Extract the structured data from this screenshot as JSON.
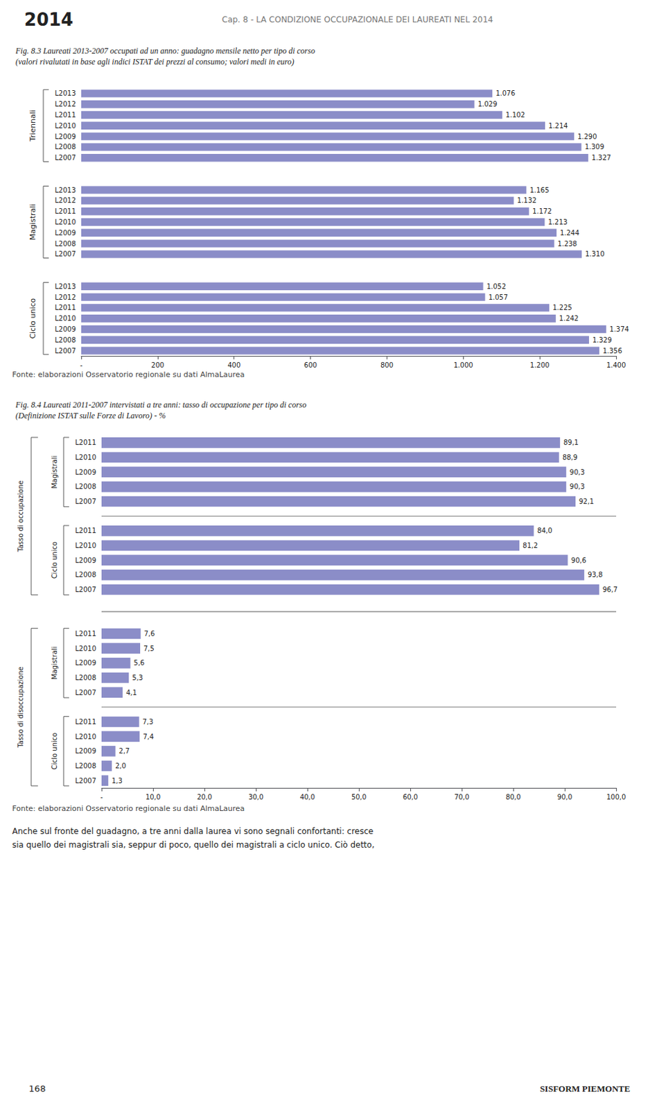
{
  "chart_data": [
    {
      "type": "bar",
      "orientation": "horizontal",
      "title": "Fig. 8.3 Laureati 2013-2007 occupati ad un anno: guadagno mensile netto per tipo di corso",
      "subtitle": "(valori rivalutati in base agli indici ISTAT dei prezzi al consumo; valori medi in euro)",
      "color": "#8b8dc8",
      "groups": [
        {
          "label": "Triennali",
          "categories": [
            "L2013",
            "L2012",
            "L2011",
            "L2010",
            "L2009",
            "L2008",
            "L2007"
          ],
          "values": [
            1076,
            1029,
            1102,
            1214,
            1290,
            1309,
            1327
          ],
          "value_labels": [
            "1.076",
            "1.029",
            "1.102",
            "1.214",
            "1.290",
            "1.309",
            "1.327"
          ]
        },
        {
          "label": "Magistrali",
          "categories": [
            "L2013",
            "L2012",
            "L2011",
            "L2010",
            "L2009",
            "L2008",
            "L2007"
          ],
          "values": [
            1165,
            1132,
            1172,
            1213,
            1244,
            1238,
            1310
          ],
          "value_labels": [
            "1.165",
            "1.132",
            "1.172",
            "1.213",
            "1.244",
            "1.238",
            "1.310"
          ]
        },
        {
          "label": "Ciclo unico",
          "categories": [
            "L2013",
            "L2012",
            "L2011",
            "L2010",
            "L2009",
            "L2008",
            "L2007"
          ],
          "values": [
            1052,
            1057,
            1225,
            1242,
            1374,
            1329,
            1356
          ],
          "value_labels": [
            "1.052",
            "1.057",
            "1.225",
            "1.242",
            "1.374",
            "1.329",
            "1.356"
          ]
        }
      ],
      "xlim": [
        0,
        1400
      ],
      "xticks": [
        {
          "value": 0,
          "label": "-"
        },
        200,
        400,
        600,
        800,
        {
          "value": 1000,
          "label": "1.000"
        },
        {
          "value": 1200,
          "label": "1.200"
        },
        {
          "value": 1400,
          "label": "1.400"
        }
      ],
      "grid": false,
      "data_labels": true,
      "annotations": [
        "2014",
        "Cap. 8 - LA CONDIZIONE OCCUPAZIONALE DEI LAUREATI NEL 2014",
        "Fonte: elaborazioni Osservatorio regionale su dati AlmaLaurea"
      ]
    },
    {
      "type": "bar",
      "orientation": "horizontal",
      "title": "Fig. 8.4 Laureati 2011-2007 intervistati a tre anni: tasso di occupazione per tipo di corso",
      "subtitle": "(Definizione ISTAT sulle Forze di Lavoro) - %",
      "color": "#8b8dc8",
      "sections": [
        {
          "label": "Tasso di occupazione",
          "groups": [
            {
              "label": "Magistrali",
              "categories": [
                "L2011",
                "L2010",
                "L2009",
                "L2008",
                "L2007"
              ],
              "values": [
                89.1,
                88.9,
                90.3,
                90.3,
                92.1
              ],
              "value_labels": [
                "89,1",
                "88,9",
                "90,3",
                "90,3",
                "92,1"
              ]
            },
            {
              "label": "Ciclo unico",
              "categories": [
                "L2011",
                "L2010",
                "L2009",
                "L2008",
                "L2007"
              ],
              "values": [
                84.0,
                81.2,
                90.6,
                93.8,
                96.7
              ],
              "value_labels": [
                "84,0",
                "81,2",
                "90,6",
                "93,8",
                "96,7"
              ]
            }
          ]
        },
        {
          "label": "Tasso di disoccupazione",
          "groups": [
            {
              "label": "Magistrali",
              "categories": [
                "L2011",
                "L2010",
                "L2009",
                "L2008",
                "L2007"
              ],
              "values": [
                7.6,
                7.5,
                5.6,
                5.3,
                4.1
              ],
              "value_labels": [
                "7,6",
                "7,5",
                "5,6",
                "5,3",
                "4,1"
              ]
            },
            {
              "label": "Ciclo unico",
              "categories": [
                "L2011",
                "L2010",
                "L2009",
                "L2008",
                "L2007"
              ],
              "values": [
                7.3,
                7.4,
                2.7,
                2.0,
                1.3
              ],
              "value_labels": [
                "7,3",
                "7,4",
                "2,7",
                "2,0",
                "1,3"
              ]
            }
          ]
        }
      ],
      "xlim": [
        0,
        100
      ],
      "xticks": [
        {
          "value": 0,
          "label": "-"
        },
        {
          "value": 10,
          "label": "10,0"
        },
        {
          "value": 20,
          "label": "20,0"
        },
        {
          "value": 30,
          "label": "30,0"
        },
        {
          "value": 40,
          "label": "40,0"
        },
        {
          "value": 50,
          "label": "50,0"
        },
        {
          "value": 60,
          "label": "60,0"
        },
        {
          "value": 70,
          "label": "70,0"
        },
        {
          "value": 80,
          "label": "80,0"
        },
        {
          "value": 90,
          "label": "90,0"
        },
        {
          "value": 100,
          "label": "100,0"
        }
      ],
      "grid": false,
      "data_labels": true,
      "annotations": [
        "Fonte: elaborazioni Osservatorio regionale su dati AlmaLaurea",
        "Anche sul fronte del guadagno, a tre anni dalla laurea vi sono segnali confortanti: cresce",
        "sia quello dei magistrali sia, seppur di poco, quello dei magistrali a ciclo unico. Ciò detto,",
        "168",
        "SISFORM PIEMONTE"
      ]
    }
  ]
}
